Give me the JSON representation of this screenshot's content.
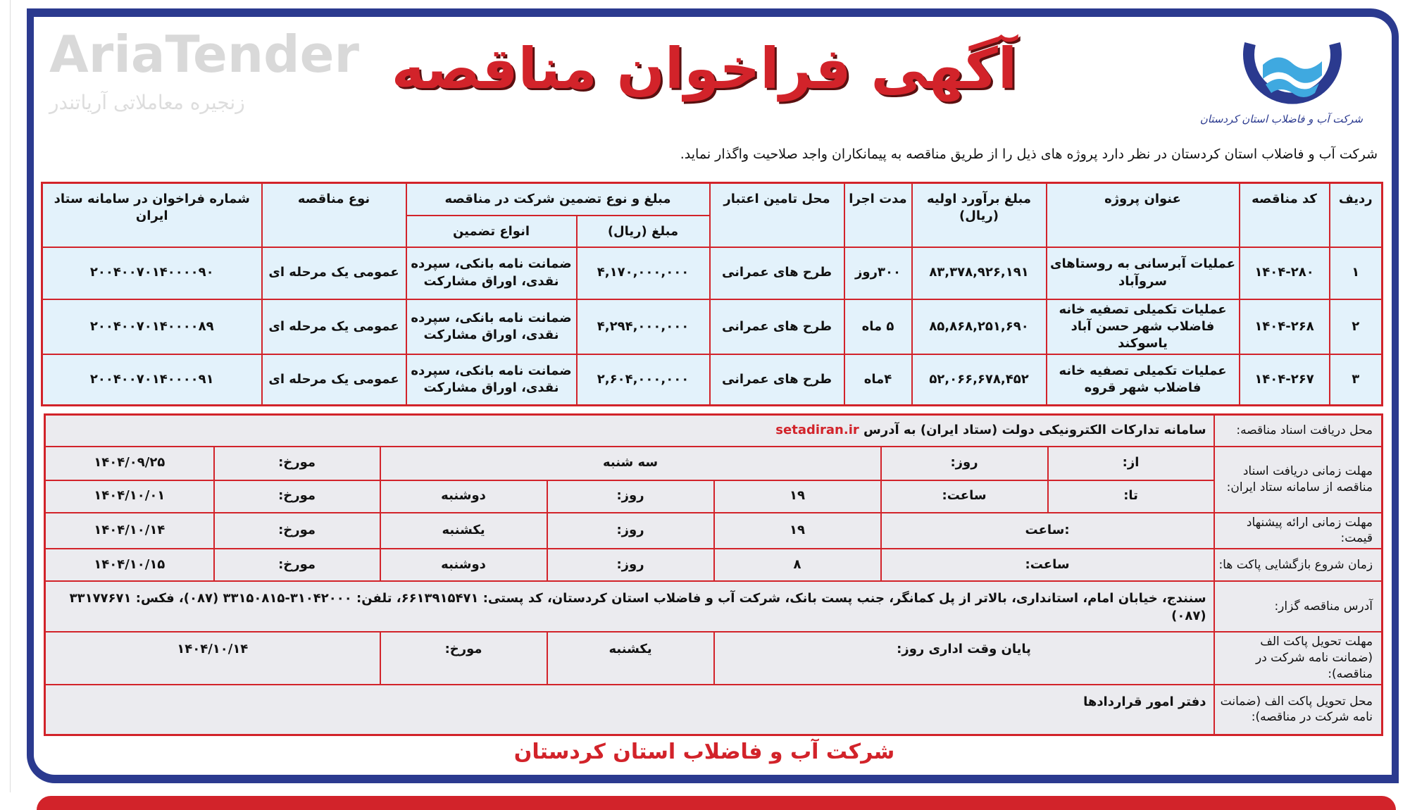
{
  "header": {
    "title": "آگهی فراخوان مناقصه",
    "logo_text": "شرکت آب و فاضلاب استان کردستان",
    "intro": "شرکت آب و فاضلاب استان کردستان در نظر دارد پروژه های ذیل را از طریق مناقصه به پیمانکاران واجد صلاحیت واگذار نماید."
  },
  "projects_table": {
    "headers": {
      "row": "ردیف",
      "code": "کد مناقصه",
      "title": "عنوان پروژه",
      "estimate": "مبلغ برآورد اولیه (ریال)",
      "duration": "مدت اجرا",
      "funding": "محل تامین اعتبار",
      "guarantee_group": "مبلغ و نوع تضمین شرکت در مناقصه",
      "guarantee_amount": "مبلغ (ریال)",
      "guarantee_types": "انواع تضمین",
      "tender_type": "نوع مناقصه",
      "setad_number": "شماره فراخوان در سامانه ستاد ایران"
    },
    "rows": [
      {
        "row": "۱",
        "code": "۱۴۰۴-۲۸۰",
        "title": "عملیات آبرسانی به روستاهای سروآباد",
        "estimate": "۸۳,۳۷۸,۹۲۶,۱۹۱",
        "duration": "۳۰۰روز",
        "funding": "طرح های عمرانی",
        "guarantee_amount": "۴,۱۷۰,۰۰۰,۰۰۰",
        "guarantee_types": "ضمانت نامه بانکی، سپرده نقدی، اوراق مشارکت",
        "tender_type": "عمومی یک مرحله ای",
        "setad_number": "۲۰۰۴۰۰۷۰۱۴۰۰۰۰۹۰"
      },
      {
        "row": "۲",
        "code": "۱۴۰۴-۲۶۸",
        "title": "عملیات تکمیلی تصفیه خانه فاضلاب شهر حسن آباد یاسوکند",
        "estimate": "۸۵,۸۶۸,۲۵۱,۶۹۰",
        "duration": "۵ ماه",
        "funding": "طرح های عمرانی",
        "guarantee_amount": "۴,۲۹۴,۰۰۰,۰۰۰",
        "guarantee_types": "ضمانت نامه بانکی، سپرده نقدی، اوراق مشارکت",
        "tender_type": "عمومی یک مرحله ای",
        "setad_number": "۲۰۰۴۰۰۷۰۱۴۰۰۰۰۸۹"
      },
      {
        "row": "۳",
        "code": "۱۴۰۴-۲۶۷",
        "title": "عملیات تکمیلی تصفیه خانه فاضلاب شهر قروه",
        "estimate": "۵۲,۰۶۶,۶۷۸,۴۵۲",
        "duration": "۴ماه",
        "funding": "طرح های عمرانی",
        "guarantee_amount": "۲,۶۰۴,۰۰۰,۰۰۰",
        "guarantee_types": "ضمانت نامه بانکی، سپرده نقدی، اوراق مشارکت",
        "tender_type": "عمومی یک مرحله ای",
        "setad_number": "۲۰۰۴۰۰۷۰۱۴۰۰۰۰۹۱"
      }
    ]
  },
  "details_table": {
    "docs_location": {
      "label": "محل دریافت اسناد مناقصه:",
      "value": "سامانه تدارکات الکترونیکی دولت (ستاد ایران) به آدرس",
      "url": "setadiran.ir"
    },
    "docs_deadline": {
      "label": "مهلت زمانی دریافت اسناد مناقصه از سامانه ستاد ایران:",
      "from": {
        "label": "از:",
        "day_label": "روز:",
        "day": "سه شنبه",
        "date_label": "مورخ:",
        "date": "۱۴۰۴/۰۹/۲۵"
      },
      "to": {
        "label": "تا:",
        "hour_label": "ساعت:",
        "hour": "۱۹",
        "day_label": "روز:",
        "day": "دوشنبه",
        "date_label": "مورخ:",
        "date": "۱۴۰۴/۱۰/۰۱"
      }
    },
    "bid_deadline": {
      "label": "مهلت زمانی ارائه پیشنهاد قیمت:",
      "hour_label": ":ساعت",
      "hour": "۱۹",
      "day_label": "روز:",
      "day": "یکشنبه",
      "date_label": "مورخ:",
      "date": "۱۴۰۴/۱۰/۱۴"
    },
    "opening": {
      "label": "زمان شروع بازگشایی پاکت ها:",
      "hour_label": "ساعت:",
      "hour": "۸",
      "day_label": "روز:",
      "day": "دوشنبه",
      "date_label": "مورخ:",
      "date": "۱۴۰۴/۱۰/۱۵"
    },
    "address": {
      "label": "آدرس مناقصه گزار:",
      "value": "سنندج، خیابان امام، استانداری، بالاتر از پل کمانگر، جنب پست بانک، شرکت آب و فاضلاب استان کردستان، کد پستی: ۶۶۱۳۹۱۵۴۷۱، تلفن: ۳۱۰۴۲۰۰۰-۳۳۱۵۰۸۱۵ (۰۸۷)، فکس: ۳۳۱۷۷۶۷۱ (۰۸۷)"
    },
    "envelope_deadline": {
      "label": "مهلت تحویل پاکت الف (ضمانت نامه شرکت در مناقصه):",
      "time_label": "پایان وقت اداری روز:",
      "day": "یکشنبه",
      "date_label": "مورخ:",
      "date": "۱۴۰۴/۱۰/۱۴"
    },
    "envelope_location": {
      "label": "محل تحویل پاکت الف (ضمانت نامه شرکت در مناقصه):",
      "value": "دفتر امور قراردادها"
    }
  },
  "footer": {
    "company": "شرکت آب و فاضلاب استان کردستان"
  },
  "watermark": {
    "brand": "AriaTender",
    "tagline": "زنجیره معاملاتی آریاتندر"
  },
  "colors": {
    "accent_red": "#d2232a",
    "frame_navy": "#2b3a8f",
    "table_blue": "#e3f2fb",
    "table_grey": "#ebebef"
  }
}
